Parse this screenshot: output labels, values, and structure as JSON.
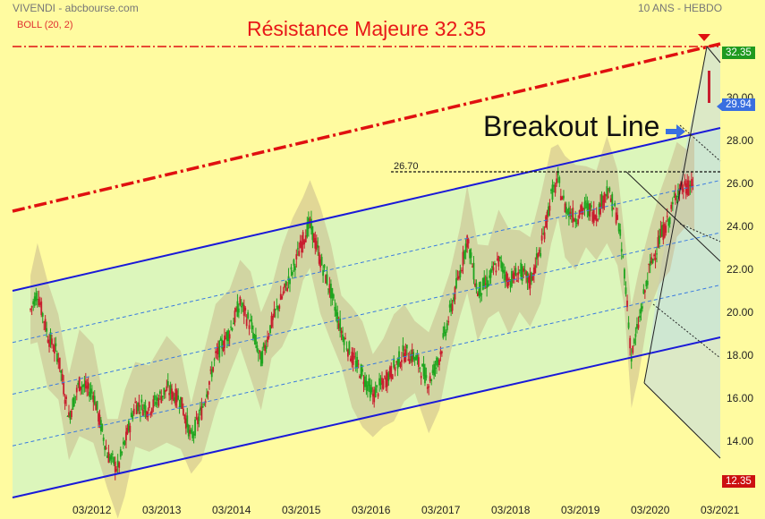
{
  "header": {
    "left": "VIVENDI - abcbourse.com",
    "right": "10 ANS - HEBDO",
    "indicator": "BOLL (20, 2)"
  },
  "annotations": {
    "resistance_title": "Résistance Majeure 32.35",
    "breakout_label": "Breakout Line",
    "level_label": "26.70"
  },
  "colors": {
    "background": "#fffba0",
    "channel_fill": "#d6f5c0",
    "channel_line": "#1a1ad8",
    "resistance_line": "#e01010",
    "up_candle": "#1fa51f",
    "down_candle": "#c81e2e",
    "bollinger_band": "#c9b98e"
  },
  "badges": {
    "resistance": "32.35",
    "last": "29.94",
    "low": "12.35"
  },
  "chart_data": {
    "type": "candlestick",
    "x_ticks": [
      "03/2012",
      "03/2013",
      "03/2014",
      "03/2015",
      "03/2016",
      "03/2017",
      "03/2018",
      "03/2019",
      "03/2020",
      "03/2021"
    ],
    "y_ticks": [
      14,
      16,
      18,
      20,
      22,
      24,
      26,
      28,
      30
    ],
    "y_tick_labels": [
      "14.00",
      "16.00",
      "18.00",
      "20.00",
      "22.00",
      "24.00",
      "26.00",
      "28.00",
      "30.00"
    ],
    "ylim": [
      12.35,
      32.35
    ],
    "resistance": 32.35,
    "last_close": 29.94,
    "level_26_70": 26.7,
    "low_marker": 12.35,
    "price_path": [
      [
        2011.3,
        20.2
      ],
      [
        2011.4,
        21.0
      ],
      [
        2011.55,
        19.0
      ],
      [
        2011.7,
        18.0
      ],
      [
        2011.85,
        15.2
      ],
      [
        2012.0,
        16.8
      ],
      [
        2012.2,
        16.3
      ],
      [
        2012.4,
        13.5
      ],
      [
        2012.55,
        12.8
      ],
      [
        2012.65,
        14.0
      ],
      [
        2012.8,
        15.8
      ],
      [
        2013.0,
        15.6
      ],
      [
        2013.25,
        16.5
      ],
      [
        2013.45,
        16.0
      ],
      [
        2013.6,
        14.2
      ],
      [
        2013.75,
        15.5
      ],
      [
        2013.95,
        18.0
      ],
      [
        2014.15,
        19.2
      ],
      [
        2014.3,
        20.5
      ],
      [
        2014.45,
        19.5
      ],
      [
        2014.6,
        17.8
      ],
      [
        2014.75,
        19.6
      ],
      [
        2014.9,
        20.8
      ],
      [
        2015.05,
        22.0
      ],
      [
        2015.2,
        23.5
      ],
      [
        2015.3,
        24.2
      ],
      [
        2015.45,
        22.5
      ],
      [
        2015.6,
        21.0
      ],
      [
        2015.75,
        19.2
      ],
      [
        2015.9,
        18.0
      ],
      [
        2016.05,
        17.2
      ],
      [
        2016.2,
        16.2
      ],
      [
        2016.35,
        16.8
      ],
      [
        2016.5,
        17.5
      ],
      [
        2016.65,
        18.2
      ],
      [
        2016.8,
        18.0
      ],
      [
        2017.0,
        16.8
      ],
      [
        2017.15,
        18.0
      ],
      [
        2017.3,
        20.0
      ],
      [
        2017.45,
        22.0
      ],
      [
        2017.55,
        23.5
      ],
      [
        2017.7,
        21.0
      ],
      [
        2017.85,
        21.5
      ],
      [
        2018.0,
        22.5
      ],
      [
        2018.15,
        21.5
      ],
      [
        2018.3,
        22.0
      ],
      [
        2018.45,
        21.5
      ],
      [
        2018.6,
        23.0
      ],
      [
        2018.75,
        25.5
      ],
      [
        2018.85,
        26.2
      ],
      [
        2018.95,
        25.0
      ],
      [
        2019.1,
        24.5
      ],
      [
        2019.25,
        25.0
      ],
      [
        2019.4,
        24.6
      ],
      [
        2019.55,
        25.8
      ],
      [
        2019.7,
        24.5
      ],
      [
        2019.8,
        22.0
      ],
      [
        2019.9,
        18.0
      ],
      [
        2020.0,
        19.5
      ],
      [
        2020.15,
        22.0
      ],
      [
        2020.3,
        23.5
      ],
      [
        2020.45,
        24.5
      ],
      [
        2020.55,
        25.8
      ],
      [
        2020.7,
        25.9
      ],
      [
        2020.8,
        26.2
      ]
    ]
  }
}
